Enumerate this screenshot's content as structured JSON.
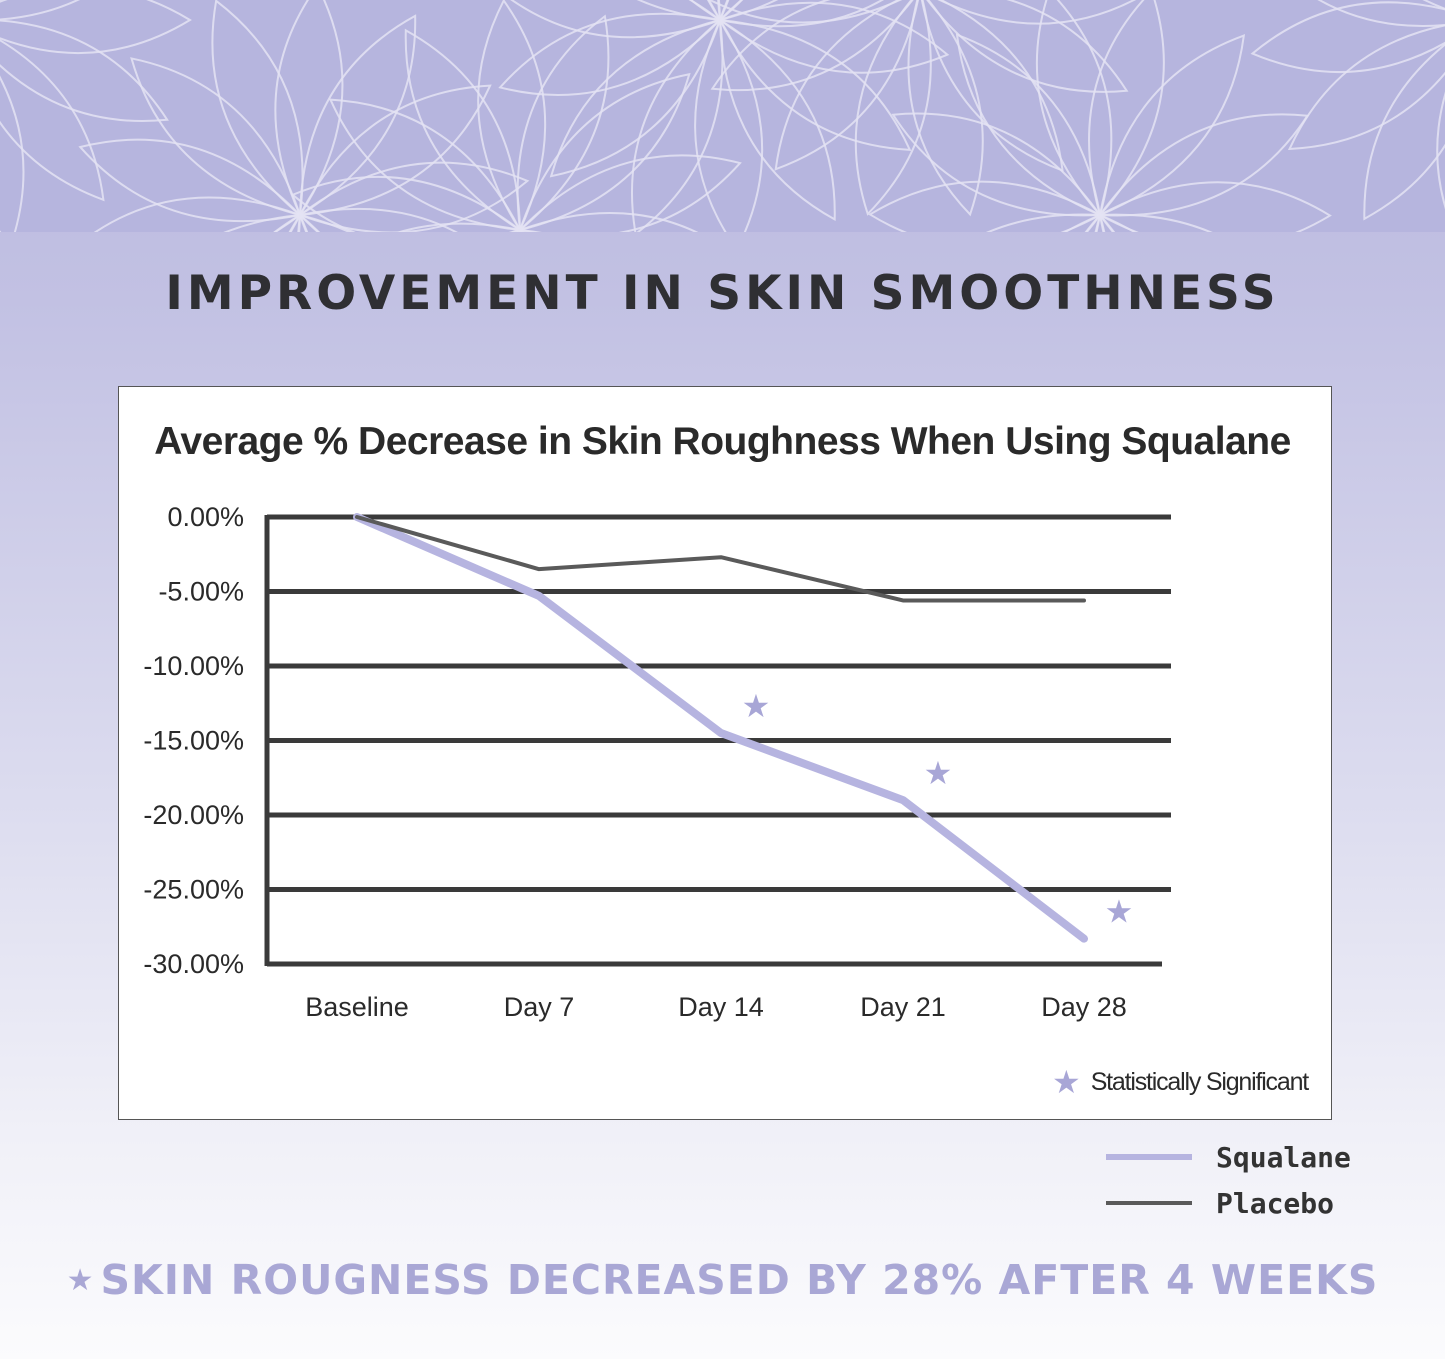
{
  "headline": "IMPROVEMENT IN SKIN SMOOTHNESS",
  "footer": {
    "star": "★",
    "text": "SKIN ROUGNESS DECREASED BY 28% AFTER 4 WEEKS"
  },
  "colors": {
    "squalane": "#b6b4e0",
    "placebo": "#5a5a5a",
    "star": "#a8a6d6",
    "footer_text": "#a9a7d5",
    "headline": "#2f2f33",
    "banner": "#b6b5de"
  },
  "icons": {
    "significance_marker": "star-icon"
  },
  "chart_data": {
    "type": "line",
    "title": "Average % Decrease in Skin Roughness When Using Squalane",
    "categories": [
      "Baseline",
      "Day 7",
      "Day 14",
      "Day 21",
      "Day 28"
    ],
    "yticks": [
      "0.00%",
      "-5.00%",
      "-10.00%",
      "-15.00%",
      "-20.00%",
      "-25.00%",
      "-30.00%"
    ],
    "ylim": [
      -30,
      0
    ],
    "grid": true,
    "series": [
      {
        "name": "Squalane",
        "values": [
          0,
          -5.3,
          -14.5,
          -19.0,
          -28.3
        ]
      },
      {
        "name": "Placebo",
        "values": [
          0,
          -3.5,
          -2.7,
          -5.6,
          -5.6
        ]
      }
    ],
    "significance": {
      "label": "Statistically Significant",
      "categories": [
        "Day 14",
        "Day 21",
        "Day 28"
      ]
    },
    "legend": [
      {
        "label": "Squalane",
        "series": "Squalane"
      },
      {
        "label": "Placebo",
        "series": "Placebo"
      }
    ],
    "legend_position": "bottom-right"
  }
}
